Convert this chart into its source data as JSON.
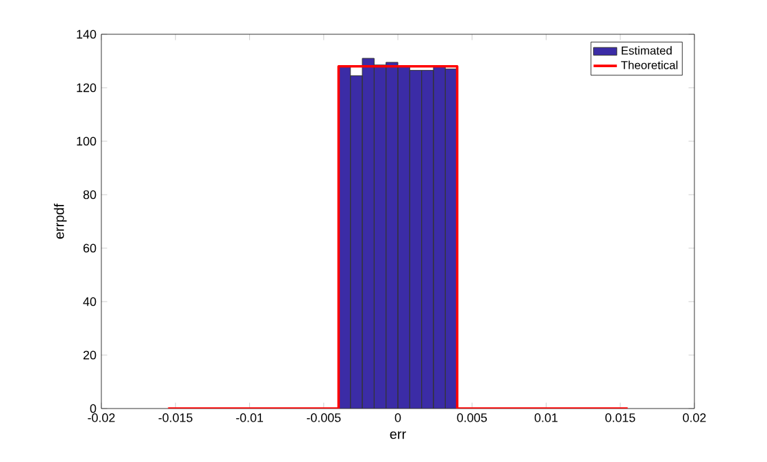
{
  "chart_data": {
    "type": "histogram",
    "xlabel": "err",
    "ylabel": "errpdf",
    "legend": "top right",
    "bins": [
      -0.004,
      -0.0032,
      -0.0024,
      -0.0016,
      -0.0008,
      0,
      0.0008,
      0.0016,
      0.0024,
      0.0032,
      0.004
    ],
    "series": [
      {
        "name": "Estimated",
        "color": "#3b2ca6",
        "values": [
          128,
          124.5,
          131,
          128.5,
          129.5,
          128,
          126.5,
          126.5,
          128,
          127
        ]
      },
      {
        "name": "Theoretical",
        "type": "line",
        "color": "#ff0000",
        "x": [
          -0.0155,
          -0.004,
          -0.004,
          0.004,
          0.004,
          0.0155
        ],
        "values": [
          0,
          0,
          128,
          128,
          0,
          0
        ]
      }
    ],
    "xlim": [
      -0.02,
      0.02
    ],
    "xticks": [
      -0.02,
      -0.015,
      -0.01,
      -0.005,
      0,
      0.005,
      0.01,
      0.015,
      0.02
    ],
    "ylim": [
      0,
      140
    ],
    "yticks": [
      0,
      20,
      40,
      60,
      80,
      100,
      120,
      140
    ]
  }
}
